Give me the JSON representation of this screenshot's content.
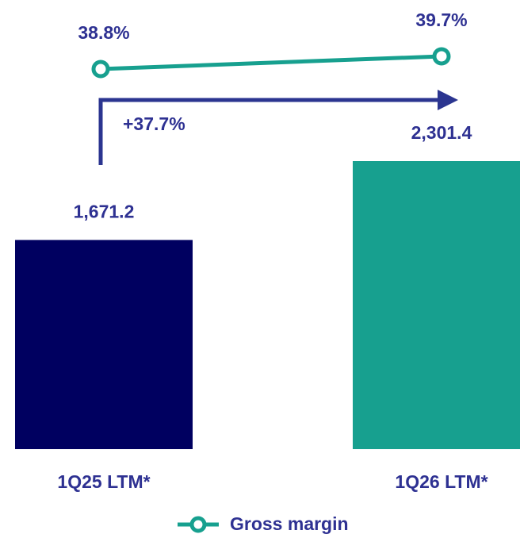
{
  "chart_data": {
    "type": "bar",
    "categories": [
      "1Q25 LTM*",
      "1Q26 LTM*"
    ],
    "values": [
      1671.2,
      2301.4
    ],
    "value_labels": [
      "1,671.2",
      "2,301.4"
    ],
    "colors": [
      "#000060",
      "#17a08f"
    ],
    "line": {
      "name": "Gross margin",
      "values": [
        38.8,
        39.7
      ],
      "value_labels": [
        "38.8%",
        "39.7%"
      ],
      "color": "#17a08f"
    },
    "annotation": "+37.7%",
    "arrow_color": "#2b3590",
    "text_color": "#2e3192"
  }
}
